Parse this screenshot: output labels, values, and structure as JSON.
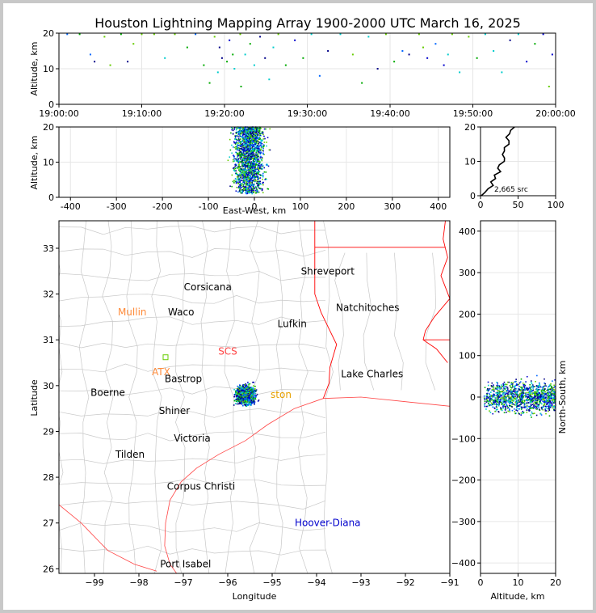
{
  "title": "Houston Lightning Mapping Array 1900-2000 UTC March 16, 2025",
  "colors": {
    "frame": "#c8c8c8",
    "county_lines": "#c8c8c8",
    "state_lines": "#ff0000",
    "coast": "#ff4444",
    "grid": "#e6e6e6",
    "source_points": [
      "#0000cc",
      "#00aa00",
      "#00cccc",
      "#0066ff",
      "#66cc00",
      "#000088"
    ]
  },
  "chart_data": [
    {
      "id": "time_altitude",
      "type": "scatter",
      "xlabel": "",
      "ylabel": "Altitude, km",
      "xlim": [
        "19:00:00",
        "20:00:00"
      ],
      "ylim": [
        0,
        20
      ],
      "x_ticks": [
        "19:00:00",
        "19:10:00",
        "19:20:00",
        "19:30:00",
        "19:40:00",
        "19:50:00",
        "20:00:00"
      ],
      "y_ticks": [
        0,
        10,
        20
      ],
      "points": [
        {
          "t": 1.0,
          "z": 20
        },
        {
          "t": 2.5,
          "z": 20
        },
        {
          "t": 3.8,
          "z": 14
        },
        {
          "t": 4.3,
          "z": 12
        },
        {
          "t": 5.5,
          "z": 19
        },
        {
          "t": 6.2,
          "z": 11
        },
        {
          "t": 7.5,
          "z": 20
        },
        {
          "t": 8.3,
          "z": 12
        },
        {
          "t": 9.0,
          "z": 17
        },
        {
          "t": 10.0,
          "z": 20
        },
        {
          "t": 11.5,
          "z": 20
        },
        {
          "t": 12.8,
          "z": 13
        },
        {
          "t": 14.0,
          "z": 20
        },
        {
          "t": 15.5,
          "z": 16
        },
        {
          "t": 16.5,
          "z": 20
        },
        {
          "t": 17.5,
          "z": 11
        },
        {
          "t": 18.2,
          "z": 6
        },
        {
          "t": 18.8,
          "z": 19
        },
        {
          "t": 19.4,
          "z": 16
        },
        {
          "t": 19.7,
          "z": 13
        },
        {
          "t": 20.6,
          "z": 18
        },
        {
          "t": 21.2,
          "z": 10
        },
        {
          "t": 21.9,
          "z": 20
        },
        {
          "t": 22.5,
          "z": 14
        },
        {
          "t": 23.1,
          "z": 17
        },
        {
          "t": 23.6,
          "z": 11
        },
        {
          "t": 24.3,
          "z": 19
        },
        {
          "t": 24.9,
          "z": 13
        },
        {
          "t": 25.4,
          "z": 7
        },
        {
          "t": 25.9,
          "z": 16
        },
        {
          "t": 26.5,
          "z": 20
        },
        {
          "t": 27.4,
          "z": 11
        },
        {
          "t": 28.5,
          "z": 18
        },
        {
          "t": 29.5,
          "z": 13
        },
        {
          "t": 30.5,
          "z": 20
        },
        {
          "t": 31.5,
          "z": 8
        },
        {
          "t": 32.5,
          "z": 15
        },
        {
          "t": 34.0,
          "z": 20
        },
        {
          "t": 35.5,
          "z": 14
        },
        {
          "t": 36.6,
          "z": 6
        },
        {
          "t": 37.4,
          "z": 19
        },
        {
          "t": 38.5,
          "z": 10
        },
        {
          "t": 39.5,
          "z": 20
        },
        {
          "t": 40.5,
          "z": 12
        },
        {
          "t": 41.5,
          "z": 15
        },
        {
          "t": 42.3,
          "z": 14
        },
        {
          "t": 43.5,
          "z": 20
        },
        {
          "t": 44.5,
          "z": 13
        },
        {
          "t": 45.5,
          "z": 17
        },
        {
          "t": 46.5,
          "z": 11
        },
        {
          "t": 47.5,
          "z": 20
        },
        {
          "t": 48.4,
          "z": 9
        },
        {
          "t": 49.5,
          "z": 19
        },
        {
          "t": 50.5,
          "z": 13
        },
        {
          "t": 51.5,
          "z": 20
        },
        {
          "t": 52.5,
          "z": 15
        },
        {
          "t": 53.5,
          "z": 9
        },
        {
          "t": 54.5,
          "z": 18
        },
        {
          "t": 55.5,
          "z": 20
        },
        {
          "t": 56.5,
          "z": 12
        },
        {
          "t": 57.5,
          "z": 17
        },
        {
          "t": 58.5,
          "z": 20
        },
        {
          "t": 59.2,
          "z": 5
        },
        {
          "t": 59.6,
          "z": 14
        },
        {
          "t": 22.0,
          "z": 5
        },
        {
          "t": 21.0,
          "z": 14
        },
        {
          "t": 19.2,
          "z": 9
        },
        {
          "t": 20.3,
          "z": 12
        },
        {
          "t": 44.0,
          "z": 16
        },
        {
          "t": 47.0,
          "z": 14
        }
      ]
    },
    {
      "id": "ew_altitude",
      "type": "scatter",
      "xlabel": "East-West, km",
      "ylabel": "Altitude, km",
      "xlim": [
        -425,
        425
      ],
      "ylim": [
        0,
        20
      ],
      "x_ticks": [
        -400,
        -300,
        -200,
        -100,
        0,
        100,
        200,
        300,
        400
      ],
      "y_ticks": [
        0,
        10,
        20
      ],
      "cluster": {
        "ew_center_km": -12,
        "ew_spread_km": 30,
        "alt_range_km": [
          1,
          20
        ],
        "n_points": 1800
      }
    },
    {
      "id": "altitude_histogram",
      "type": "line",
      "xlabel": "",
      "ylabel": "",
      "xlim": [
        0,
        100
      ],
      "ylim": [
        0,
        20
      ],
      "x_ticks": [
        0,
        50,
        100
      ],
      "y_ticks": [
        0,
        10,
        20
      ],
      "annotation": "2,665 src",
      "profile": [
        {
          "z": 0,
          "n": 1
        },
        {
          "z": 1,
          "n": 6
        },
        {
          "z": 2,
          "n": 10
        },
        {
          "z": 3,
          "n": 14
        },
        {
          "z": 4,
          "n": 17
        },
        {
          "z": 5,
          "n": 20
        },
        {
          "z": 6,
          "n": 22
        },
        {
          "z": 7,
          "n": 24
        },
        {
          "z": 8,
          "n": 25
        },
        {
          "z": 9,
          "n": 27
        },
        {
          "z": 10,
          "n": 28
        },
        {
          "z": 11,
          "n": 29
        },
        {
          "z": 12,
          "n": 31
        },
        {
          "z": 13,
          "n": 32
        },
        {
          "z": 14,
          "n": 33
        },
        {
          "z": 15,
          "n": 34
        },
        {
          "z": 16,
          "n": 35
        },
        {
          "z": 17,
          "n": 36
        },
        {
          "z": 18,
          "n": 38
        },
        {
          "z": 19,
          "n": 40
        },
        {
          "z": 20,
          "n": 42
        }
      ]
    },
    {
      "id": "plan_view",
      "type": "scatter",
      "xlabel": "Longitude",
      "ylabel": "Latitude",
      "xlim": [
        -99.8,
        -91
      ],
      "ylim": [
        25.9,
        33.6
      ],
      "x_ticks": [
        -99,
        -98,
        -97,
        -96,
        -95,
        -94,
        -93,
        -92,
        -91
      ],
      "y_ticks": [
        26,
        27,
        28,
        29,
        30,
        31,
        32,
        33
      ],
      "cluster": {
        "lon_center": -95.6,
        "lat_center": 29.8,
        "lon_spread": 0.35,
        "lat_spread": 0.28,
        "n_points": 1400
      },
      "places": [
        {
          "name": "Shreveport",
          "lon": -93.75,
          "lat": 32.5,
          "color": "#000000"
        },
        {
          "name": "Corsicana",
          "lon": -96.45,
          "lat": 32.15,
          "color": "#000000"
        },
        {
          "name": "Natchitoches",
          "lon": -92.85,
          "lat": 31.7,
          "color": "#000000"
        },
        {
          "name": "Mullin",
          "lon": -98.15,
          "lat": 31.6,
          "color": "#ff8c3c"
        },
        {
          "name": "Waco",
          "lon": -97.05,
          "lat": 31.6,
          "color": "#000000"
        },
        {
          "name": "Lufkin",
          "lon": -94.55,
          "lat": 31.35,
          "color": "#000000"
        },
        {
          "name": "SCS",
          "lon": -96.0,
          "lat": 30.75,
          "color": "#ff4444"
        },
        {
          "name": "ATX",
          "lon": -97.5,
          "lat": 30.3,
          "color": "#ff8c3c"
        },
        {
          "name": "Bastrop",
          "lon": -97.0,
          "lat": 30.15,
          "color": "#000000"
        },
        {
          "name": "Lake Charles",
          "lon": -92.75,
          "lat": 30.25,
          "color": "#000000"
        },
        {
          "name": "Boerne",
          "lon": -98.7,
          "lat": 29.85,
          "color": "#000000"
        },
        {
          "name": "ston",
          "lon": -94.8,
          "lat": 29.8,
          "color": "#e6a000"
        },
        {
          "name": "Shiner",
          "lon": -97.2,
          "lat": 29.45,
          "color": "#000000"
        },
        {
          "name": "Victoria",
          "lon": -96.8,
          "lat": 28.85,
          "color": "#000000"
        },
        {
          "name": "Tilden",
          "lon": -98.2,
          "lat": 28.5,
          "color": "#000000"
        },
        {
          "name": "Corpus Christi",
          "lon": -96.6,
          "lat": 27.8,
          "color": "#000000"
        },
        {
          "name": "Hoover-Diana",
          "lon": -93.75,
          "lat": 27.0,
          "color": "#0000cc"
        },
        {
          "name": "Port Isabel",
          "lon": -96.95,
          "lat": 26.1,
          "color": "#000000"
        }
      ]
    },
    {
      "id": "ns_altitude",
      "type": "scatter",
      "xlabel": "Altitude, km",
      "ylabel": "North-South, km",
      "xlim": [
        0,
        20
      ],
      "ylim": [
        -425,
        425
      ],
      "x_ticks": [
        0,
        10,
        20
      ],
      "y_ticks": [
        -400,
        -300,
        -200,
        -100,
        0,
        100,
        200,
        300,
        400
      ],
      "cluster": {
        "ns_center_km": 0,
        "ns_spread_km": 35,
        "alt_range_km": [
          1,
          20
        ],
        "n_points": 1200
      }
    }
  ]
}
